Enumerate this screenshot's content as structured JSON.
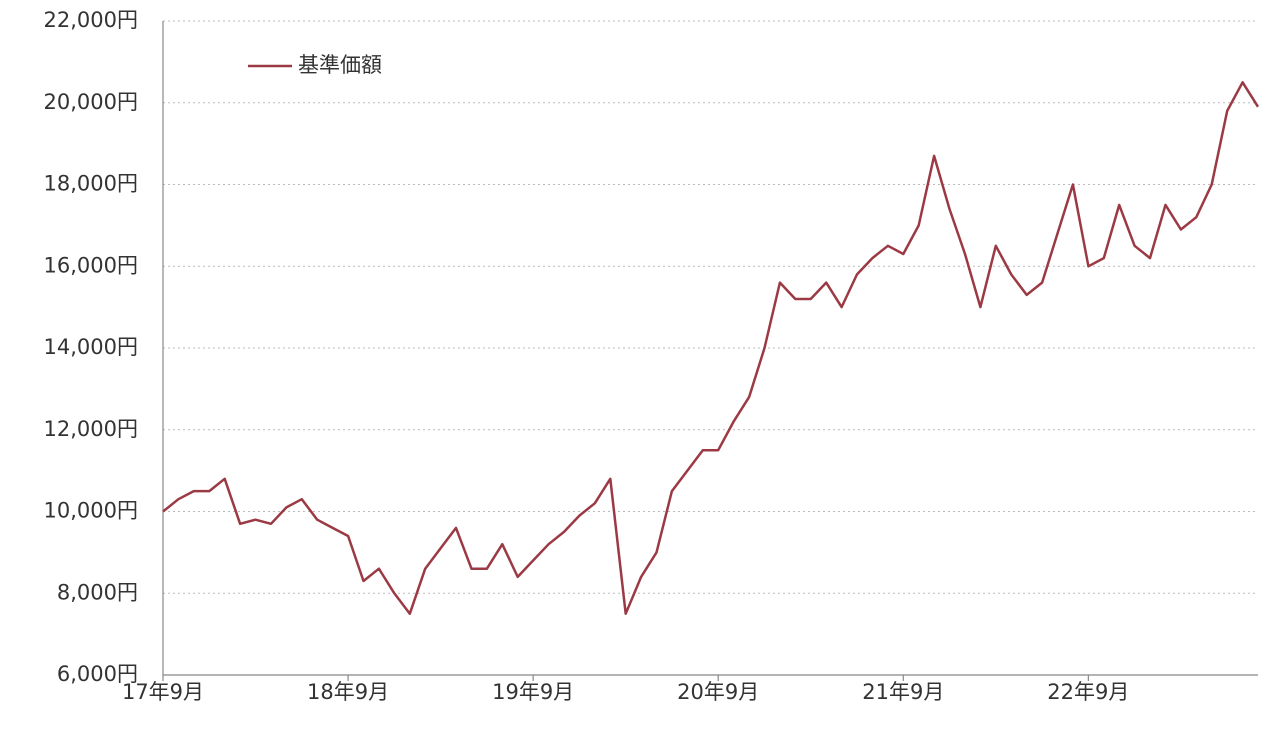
{
  "chart_data": {
    "type": "line",
    "categories": [
      "17年9月",
      null,
      null,
      null,
      null,
      null,
      null,
      null,
      null,
      null,
      null,
      null,
      "18年9月",
      null,
      null,
      null,
      null,
      null,
      null,
      null,
      null,
      null,
      null,
      null,
      "19年9月",
      null,
      null,
      null,
      null,
      null,
      null,
      null,
      null,
      null,
      null,
      null,
      "20年9月",
      null,
      null,
      null,
      null,
      null,
      null,
      null,
      null,
      null,
      null,
      null,
      "21年9月",
      null,
      null,
      null,
      null,
      null,
      null,
      null,
      null,
      null,
      null,
      null,
      "22年9月",
      null,
      null,
      null,
      null,
      null,
      null,
      null,
      null,
      null,
      null,
      null
    ],
    "series": [
      {
        "name": "基準価額",
        "color": "#9b3a44",
        "values": [
          10000,
          10300,
          10500,
          10500,
          10800,
          9700,
          9800,
          9700,
          10100,
          10300,
          9800,
          9600,
          9400,
          8300,
          8600,
          8000,
          7500,
          8600,
          9100,
          9600,
          8600,
          8600,
          9200,
          8400,
          8800,
          9200,
          9500,
          9900,
          10200,
          10800,
          7500,
          8400,
          9000,
          10500,
          11000,
          11500,
          11500,
          12200,
          12800,
          14000,
          15600,
          15200,
          15200,
          15600,
          15000,
          15800,
          16200,
          16500,
          16300,
          17000,
          18700,
          17400,
          16300,
          15000,
          16500,
          15800,
          15300,
          15600,
          16800,
          18000,
          16000,
          16200,
          17500,
          16500,
          16200,
          17500,
          16900,
          17200,
          18000,
          19800,
          20500,
          19900
        ]
      }
    ],
    "ylim": [
      6000,
      22000
    ],
    "yticks": [
      {
        "value": 6000,
        "label": "6,000円"
      },
      {
        "value": 8000,
        "label": "8,000円"
      },
      {
        "value": 10000,
        "label": "10,000円"
      },
      {
        "value": 12000,
        "label": "12,000円"
      },
      {
        "value": 14000,
        "label": "14,000円"
      },
      {
        "value": 16000,
        "label": "16,000円"
      },
      {
        "value": 18000,
        "label": "18,000円"
      },
      {
        "value": 20000,
        "label": "20,000円"
      },
      {
        "value": 22000,
        "label": "22,000円"
      }
    ],
    "grid": true,
    "legend": "upper left"
  }
}
